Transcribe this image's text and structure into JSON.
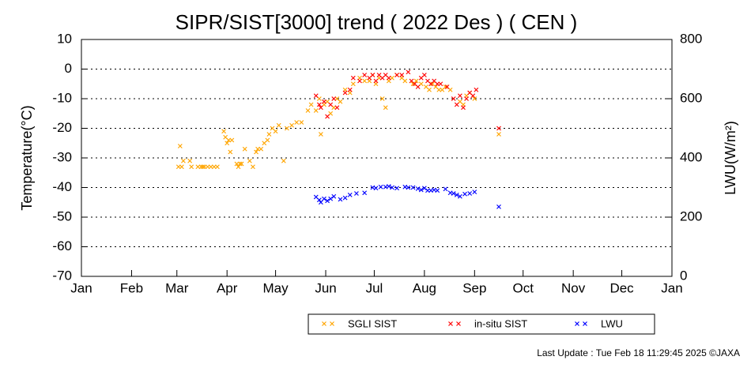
{
  "chart_data": {
    "type": "scatter",
    "title": "SIPR/SIST[3000] trend ( 2022 Des ) ( CEN )",
    "y_label": "Temperature(°C)",
    "y2_label": "LWU(W/m²)",
    "footnote": "Last Update : Tue Feb 18 11:29:45 2025 ©JAXA",
    "xlim": [
      0,
      365
    ],
    "xticks": [
      {
        "value": 0,
        "label": "Jan"
      },
      {
        "value": 31,
        "label": "Feb"
      },
      {
        "value": 59,
        "label": "Mar"
      },
      {
        "value": 90,
        "label": "Apr"
      },
      {
        "value": 120,
        "label": "May"
      },
      {
        "value": 151,
        "label": "Jun"
      },
      {
        "value": 181,
        "label": "Jul"
      },
      {
        "value": 212,
        "label": "Aug"
      },
      {
        "value": 243,
        "label": "Sep"
      },
      {
        "value": 273,
        "label": "Oct"
      },
      {
        "value": 304,
        "label": "Nov"
      },
      {
        "value": 334,
        "label": "Dec"
      },
      {
        "value": 365,
        "label": "Jan"
      }
    ],
    "ylim": [
      -70,
      10
    ],
    "yticks": [
      10,
      0,
      -10,
      -20,
      -30,
      -40,
      -50,
      -60,
      -70
    ],
    "y2lim": [
      0,
      800
    ],
    "y2ticks": [
      800,
      600,
      400,
      200,
      0
    ],
    "grid": true,
    "legend": "bottom",
    "series": [
      {
        "name": "SGLI SIST",
        "color": "#ffa500",
        "x": [
          60,
          61,
          62,
          63,
          67,
          68,
          72,
          74,
          75,
          76,
          78,
          80,
          82,
          84,
          88,
          89,
          90,
          91,
          92,
          93,
          96,
          97,
          98,
          99,
          101,
          104,
          106,
          108,
          109,
          111,
          113,
          115,
          116,
          118,
          120,
          122,
          125,
          127,
          130,
          133,
          136,
          140,
          142,
          145,
          147,
          148,
          150,
          152,
          154,
          156,
          158,
          160,
          163,
          166,
          168,
          172,
          175,
          178,
          180,
          182,
          184,
          186,
          188,
          190,
          192,
          195,
          198,
          200,
          205,
          207,
          210,
          213,
          215,
          217,
          219,
          221,
          223,
          225,
          228,
          234,
          236,
          238,
          240,
          243,
          258
        ],
        "values": [
          -33,
          -26,
          -33,
          -31,
          -31,
          -33,
          -33,
          -33,
          -33,
          -33,
          -33,
          -33,
          -33,
          -33,
          -21,
          -23,
          -25,
          -24,
          -28,
          -24,
          -32,
          -33,
          -32,
          -32,
          -27,
          -31,
          -33,
          -28,
          -27,
          -27,
          -25,
          -24,
          -22,
          -20,
          -21,
          -19,
          -31,
          -20,
          -19,
          -18,
          -18,
          -14,
          -12,
          -14,
          -10,
          -22,
          -12,
          -11,
          -15,
          -13,
          -10,
          -11,
          -7,
          -8,
          -5,
          -3,
          -4,
          -4,
          -2,
          -5,
          -3,
          -10,
          -13,
          -4,
          -3,
          -2,
          -3,
          -4,
          -5,
          -4,
          -5,
          -6,
          -7,
          -5,
          -6,
          -7,
          -7,
          -6,
          -7,
          -11,
          -12,
          -9,
          -8,
          -10,
          -22
        ]
      },
      {
        "name": "in-situ SIST",
        "color": "#ff0000",
        "x": [
          145,
          147,
          148,
          150,
          152,
          154,
          156,
          158,
          163,
          166,
          168,
          172,
          175,
          178,
          180,
          182,
          184,
          186,
          188,
          190,
          195,
          198,
          202,
          204,
          206,
          208,
          210,
          212,
          214,
          216,
          218,
          220,
          222,
          226,
          230,
          232,
          234,
          236,
          238,
          240,
          242,
          244,
          258
        ],
        "values": [
          -9,
          -12,
          -13,
          -11,
          -16,
          -12,
          -10,
          -13,
          -8,
          -7,
          -3,
          -4,
          -2,
          -3,
          -2,
          -4,
          -2,
          -3,
          -2,
          -3,
          -2,
          -2,
          -1,
          -4,
          -5,
          -6,
          -3,
          -2,
          -4,
          -5,
          -4,
          -5,
          -5,
          -6,
          -10,
          -12,
          -9,
          -13,
          -10,
          -8,
          -9,
          -7,
          -20
        ]
      },
      {
        "name": "LWU",
        "color": "#0000ff",
        "axis": "y2",
        "x": [
          145,
          147,
          148,
          150,
          152,
          154,
          156,
          160,
          163,
          166,
          170,
          175,
          180,
          182,
          185,
          188,
          190,
          192,
          195,
          200,
          202,
          205,
          208,
          210,
          212,
          214,
          216,
          218,
          220,
          225,
          228,
          230,
          232,
          234,
          237,
          240,
          243,
          258
        ],
        "values": [
          268,
          258,
          250,
          262,
          255,
          262,
          270,
          260,
          265,
          275,
          280,
          282,
          300,
          298,
          302,
          302,
          304,
          300,
          298,
          302,
          300,
          300,
          296,
          292,
          298,
          290,
          290,
          292,
          290,
          295,
          282,
          280,
          275,
          270,
          278,
          280,
          285,
          235
        ]
      }
    ]
  }
}
